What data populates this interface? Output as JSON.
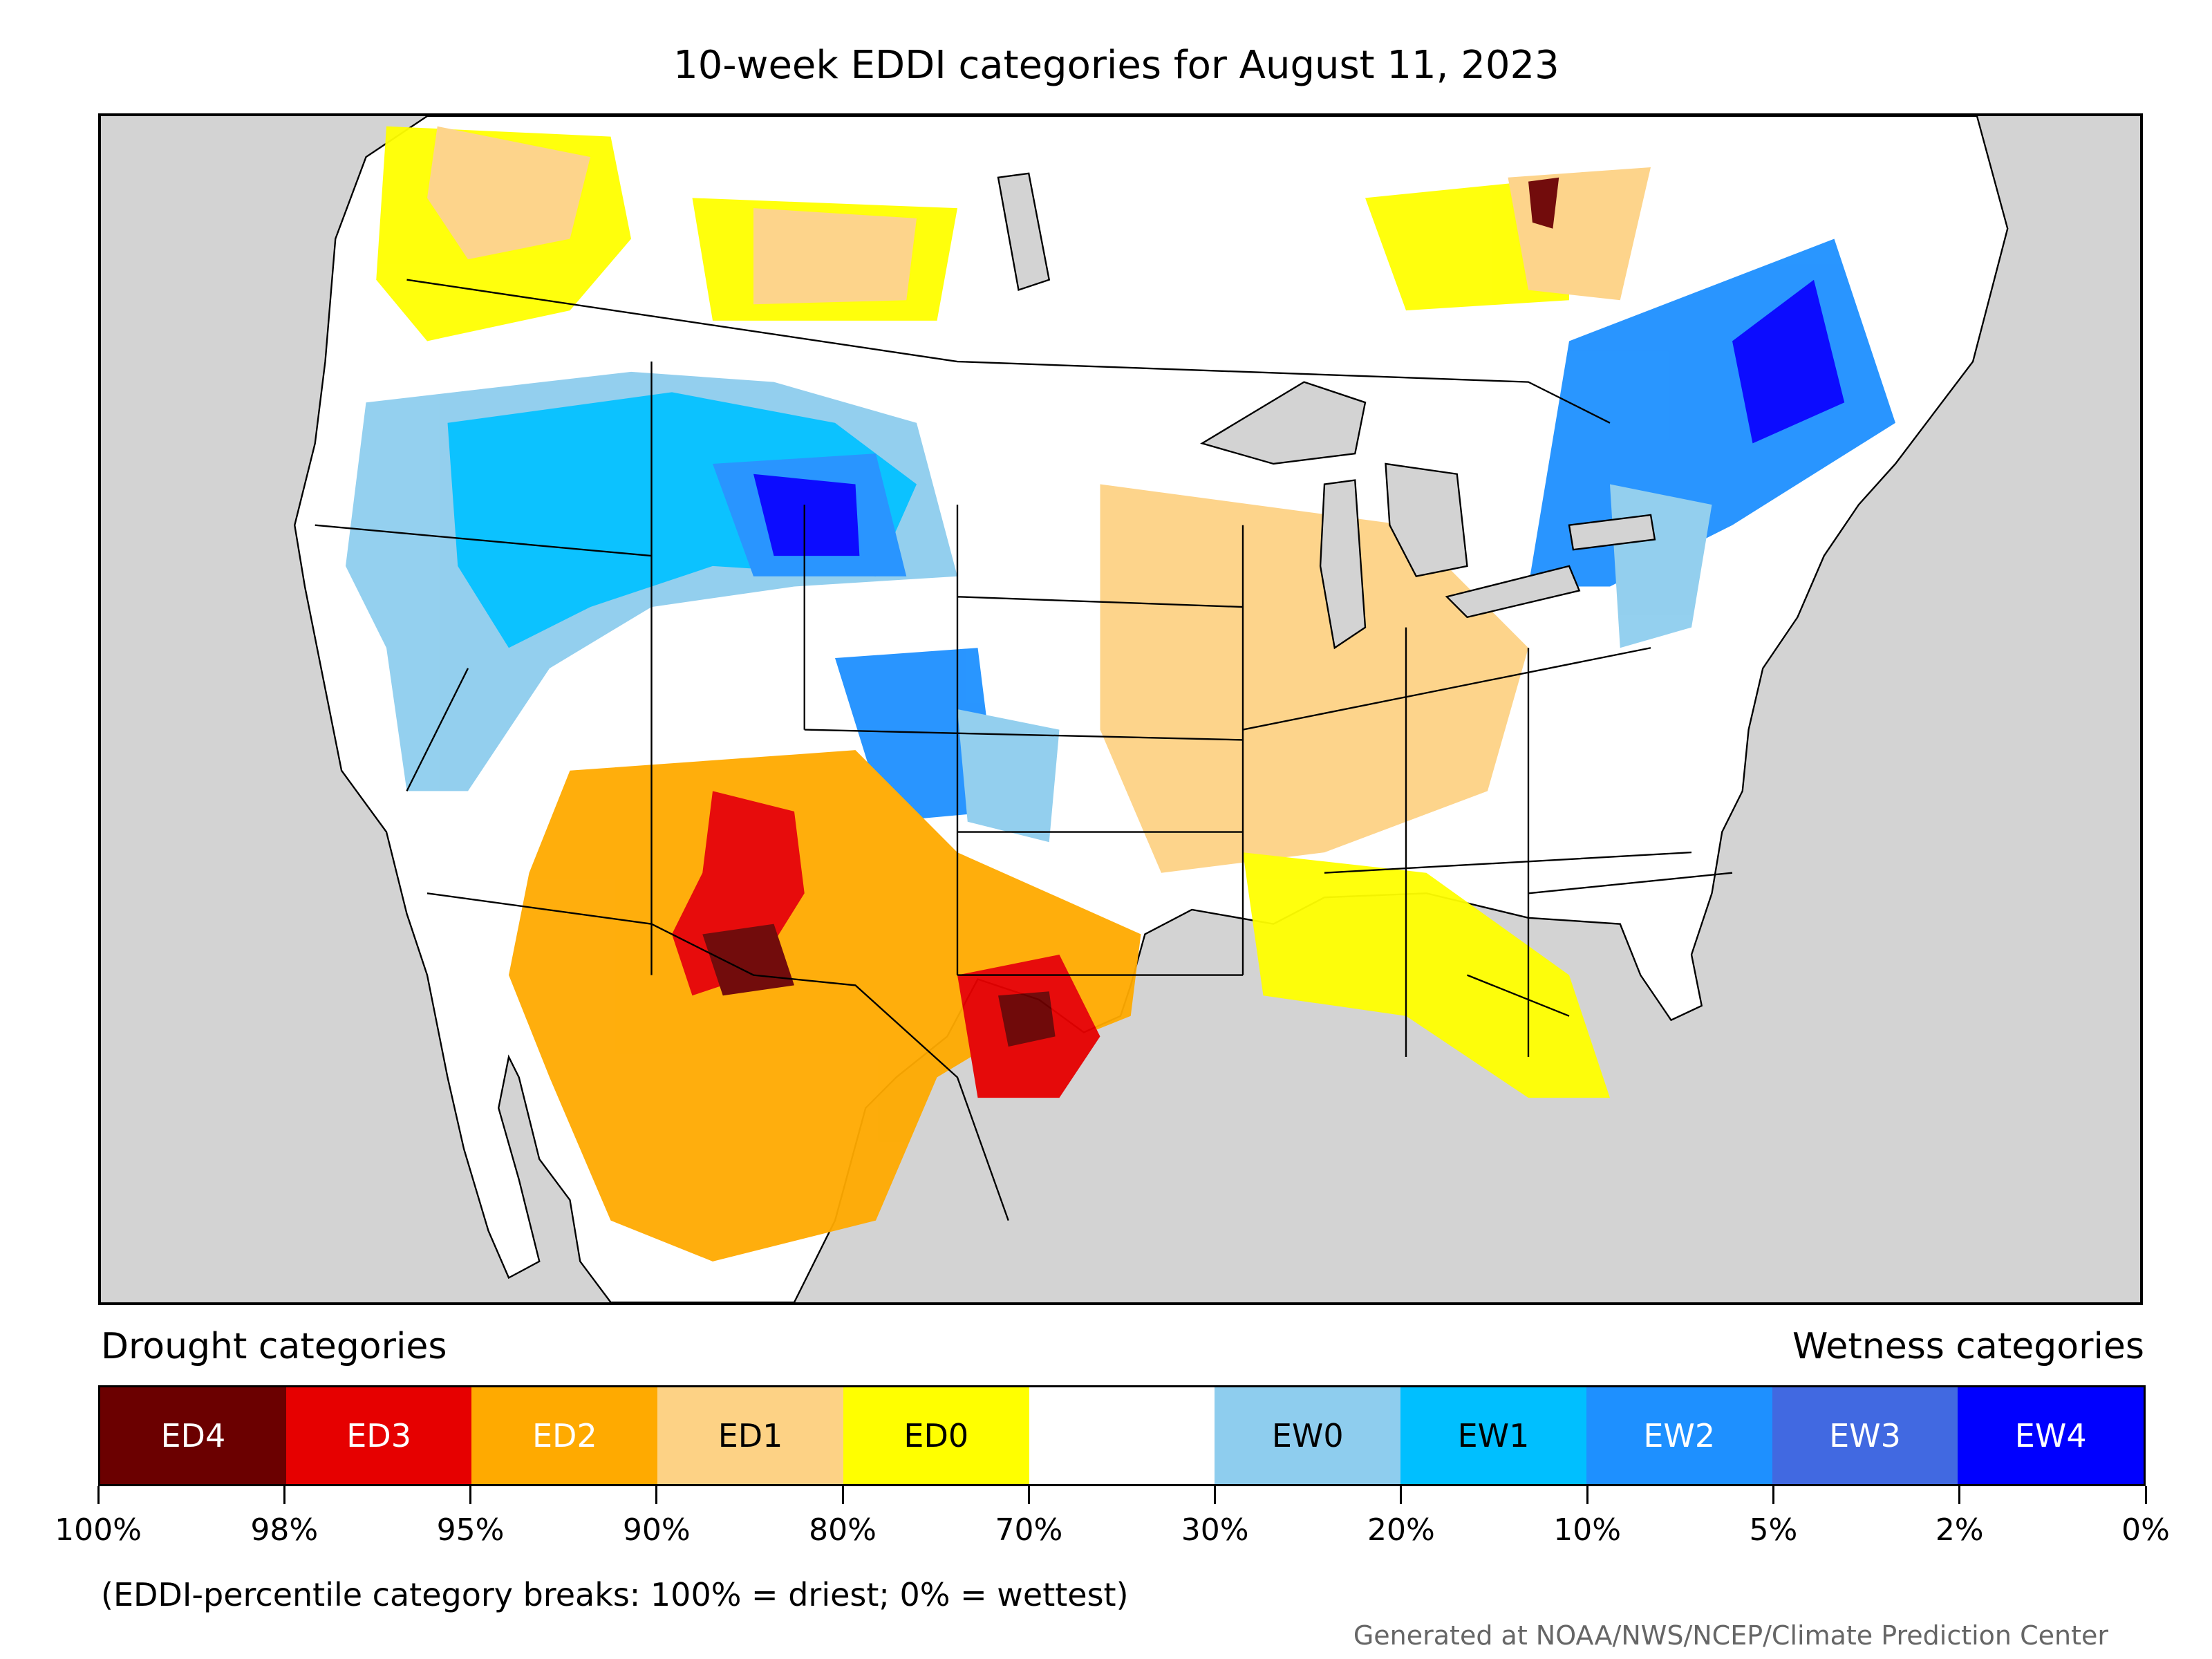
{
  "title": "10-week EDDI categories for August 11, 2023",
  "legend": {
    "drought_heading": "Drought categories",
    "wetness_heading": "Wetness categories",
    "categories": [
      {
        "label": "ED4",
        "color": "#6b0000",
        "text_color": "#ffffff"
      },
      {
        "label": "ED3",
        "color": "#e60000",
        "text_color": "#ffffff"
      },
      {
        "label": "ED2",
        "color": "#ffaa00",
        "text_color": "#ffffff"
      },
      {
        "label": "ED1",
        "color": "#fdd285",
        "text_color": "#000000"
      },
      {
        "label": "ED0",
        "color": "#ffff00",
        "text_color": "#000000"
      },
      {
        "label": "",
        "color": "#ffffff",
        "text_color": "#000000"
      },
      {
        "label": "EW0",
        "color": "#8ecdee",
        "text_color": "#000000"
      },
      {
        "label": "EW1",
        "color": "#00bfff",
        "text_color": "#000000"
      },
      {
        "label": "EW2",
        "color": "#1e90ff",
        "text_color": "#ffffff"
      },
      {
        "label": "EW3",
        "color": "#4169e1",
        "text_color": "#ffffff"
      },
      {
        "label": "EW4",
        "color": "#0000ff",
        "text_color": "#ffffff"
      }
    ],
    "breaks": [
      "100%",
      "98%",
      "95%",
      "90%",
      "80%",
      "70%",
      "30%",
      "20%",
      "10%",
      "5%",
      "2%",
      "0%"
    ]
  },
  "footnote": "(EDDI-percentile category breaks: 100% = driest; 0% = wettest)",
  "credit": "Generated at NOAA/NWS/NCEP/Climate Prediction Center",
  "map": {
    "background_color": "#d3d3d3",
    "land_color": "#ffffff",
    "water_color": "#d3d3d3"
  }
}
